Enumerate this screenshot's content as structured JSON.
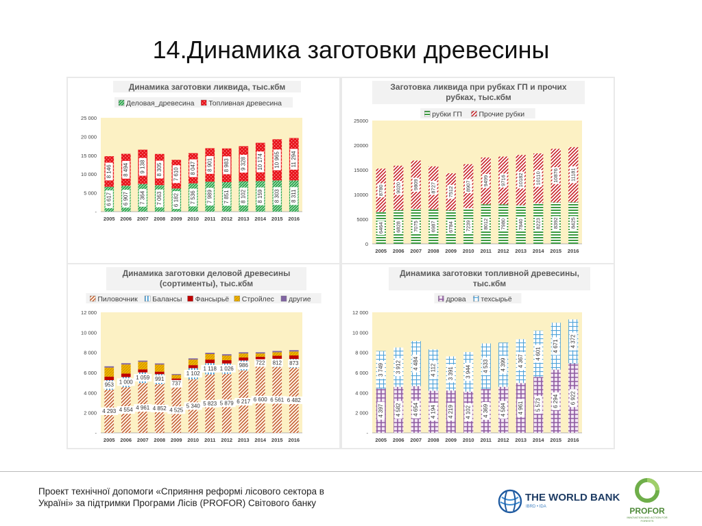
{
  "slide": {
    "title": "14.Динамика заготовки древесины",
    "footer": "Проект технічної допомоги «Сприяння реформі лісового сектора в Україні» за підтримки Програми Лісів (PROFOR) Світового банку",
    "logos": {
      "worldbank_name": "THE WORLD BANK",
      "worldbank_sub": "IBRD • IDA",
      "profor_name": "PROFOR",
      "profor_tagline": "INNOVATION AND ACTION FOR FORESTS"
    }
  },
  "chart_data": [
    {
      "type": "bar",
      "stacked": true,
      "title": "Динамика заготовки ликвида, тыс.кбм",
      "categories": [
        "2005",
        "2006",
        "2007",
        "2008",
        "2009",
        "2010",
        "2011",
        "2012",
        "2013",
        "2014",
        "2015",
        "2016"
      ],
      "series": [
        {
          "name": "Деловая_древесина",
          "values": [
            6617,
            6907,
            7364,
            7063,
            6182,
            7536,
            7989,
            7851,
            8102,
            8159,
            8303,
            8311
          ],
          "labels": [
            "6 617",
            "6 907",
            "7 364",
            "7 063",
            "6 182",
            "7 536",
            "7 989",
            "7 851",
            "8 102",
            "8 159",
            "8 303",
            "8 311"
          ],
          "color": "#2ea44f"
        },
        {
          "name": "Топливная древесина",
          "values": [
            8146,
            8494,
            9138,
            8305,
            7610,
            8047,
            8901,
            8983,
            9328,
            10174,
            10965,
            11294
          ],
          "labels": [
            "8 146",
            "8 494",
            "9 138",
            "8 305",
            "7 610",
            "8 047",
            "8 901",
            "8 983",
            "9 328",
            "10 174",
            "10 965",
            "11 294"
          ],
          "color": "#e8141b"
        }
      ],
      "ylim": [
        0,
        25000
      ],
      "yticks": [
        0,
        5000,
        10000,
        15000,
        20000,
        25000
      ],
      "ytick_labels": [
        "-",
        "5 000",
        "10 000",
        "15 000",
        "20 000",
        "25 000"
      ],
      "legend": "top",
      "grid": false,
      "plot_bg": "#fcf1c4"
    },
    {
      "type": "bar",
      "stacked": true,
      "title": "Заготовка ликвида при рубках ГП и прочих рубках, тыс.кбм",
      "categories": [
        "2005",
        "2006",
        "2007",
        "2008",
        "2009",
        "2010",
        "2011",
        "2012",
        "2013",
        "2014",
        "2015",
        "2016"
      ],
      "series": [
        {
          "name": "рубки ГП",
          "values": [
            6464,
            6828,
            7075,
            6987,
            6784,
            7239,
            8012,
            7980,
            7840,
            8223,
            8392,
            8425
          ],
          "labels": [
            "6464",
            "6828",
            "7075",
            "6987",
            "6784",
            "7239",
            "8012",
            "7980",
            "7840",
            "8223",
            "8392",
            "8425"
          ],
          "color": "#3a9a3e"
        },
        {
          "name": "Прочие рубки",
          "values": [
            8780,
            9020,
            9809,
            8727,
            7512,
            8907,
            9499,
            9716,
            10182,
            10110,
            10876,
            11181
          ],
          "labels": [
            "8780",
            "9020",
            "9809",
            "8727",
            "7512",
            "8907",
            "9499",
            "9716",
            "10182",
            "10110",
            "10876",
            "11181"
          ],
          "color": "#c72026"
        }
      ],
      "ylim": [
        0,
        25000
      ],
      "yticks": [
        0,
        5000,
        10000,
        15000,
        20000,
        25000
      ],
      "ytick_labels": [
        "0",
        "5000",
        "10000",
        "15000",
        "20000",
        "25000"
      ],
      "legend": "top",
      "grid": false,
      "plot_bg": "#fcf1c4"
    },
    {
      "type": "bar",
      "stacked": true,
      "title": "Динамика заготовки деловой древесины (сортименты), тыс.кбм",
      "categories": [
        "2005",
        "2006",
        "2007",
        "2008",
        "2009",
        "2010",
        "2011",
        "2012",
        "2013",
        "2014",
        "2015",
        "2016"
      ],
      "series": [
        {
          "name": "Пиловочник",
          "values": [
            4293,
            4554,
            4961,
            4852,
            4525,
            5340,
            5823,
            5879,
            6217,
            6600,
            6561,
            6482
          ],
          "labels": [
            "4 293",
            "4 554",
            "4 961",
            "4 852",
            "4 525",
            "5 340",
            "5 823",
            "5 879",
            "6 217",
            "6 600",
            "6 561",
            "6 482"
          ],
          "color": "#c0572a"
        },
        {
          "name": "Балансы",
          "values": [
            953,
            1000,
            1059,
            991,
            737,
            1102,
            1118,
            1026,
            986,
            722,
            812,
            873
          ],
          "labels": [
            "953",
            "1 000",
            "1 059",
            "991",
            "737",
            "1 102",
            "1 118",
            "1 026",
            "986",
            "722",
            "812",
            "873"
          ],
          "color": "#2f8fce"
        },
        {
          "name": "Фансырьё",
          "values": [
            350,
            350,
            300,
            250,
            150,
            300,
            350,
            330,
            300,
            250,
            300,
            350
          ],
          "labels": [],
          "color": "#c00000"
        },
        {
          "name": "Стройлес",
          "values": [
            900,
            900,
            750,
            700,
            350,
            550,
            550,
            460,
            400,
            330,
            350,
            390
          ],
          "labels": [],
          "color": "#f0b400"
        },
        {
          "name": "другие",
          "values": [
            130,
            130,
            120,
            120,
            90,
            120,
            130,
            130,
            120,
            120,
            130,
            140
          ],
          "labels": [],
          "color": "#8064a2"
        }
      ],
      "ylim": [
        0,
        12000
      ],
      "yticks": [
        0,
        2000,
        4000,
        6000,
        8000,
        10000,
        12000
      ],
      "ytick_labels": [
        "-",
        "2 000",
        "4 000",
        "6 000",
        "8 000",
        "10 000",
        "12 000"
      ],
      "legend": "top",
      "grid": false,
      "plot_bg": "#fcf1c4"
    },
    {
      "type": "bar",
      "stacked": true,
      "title": "Динамика заготовки топливной древесины, тыс.кбм",
      "categories": [
        "2005",
        "2006",
        "2007",
        "2008",
        "2009",
        "2010",
        "2011",
        "2012",
        "2013",
        "2014",
        "2015",
        "2016"
      ],
      "series": [
        {
          "name": "дрова",
          "values": [
            4397,
            4582,
            4654,
            4194,
            4219,
            4102,
            4369,
            4584,
            4961,
            5573,
            6294,
            6922
          ],
          "labels": [
            "4 397",
            "4 582",
            "4 654",
            "4 194",
            "4 219",
            "4 102",
            "4 369",
            "4 584",
            "4 961",
            "5 573",
            "6 294",
            "6 922"
          ],
          "color": "#8e5aa0"
        },
        {
          "name": "техсырьё",
          "values": [
            3749,
            3912,
            4484,
            4112,
            3391,
            3944,
            4533,
            4399,
            4367,
            4601,
            4671,
            4372
          ],
          "labels": [
            "3 749",
            "3 912",
            "4 484",
            "4 112",
            "3 391",
            "3 944",
            "4 533",
            "4 399",
            "4 367",
            "4 601",
            "4 671",
            "4 372"
          ],
          "color": "#4fa3d9"
        }
      ],
      "ylim": [
        0,
        12000
      ],
      "yticks": [
        0,
        2000,
        4000,
        6000,
        8000,
        10000,
        12000
      ],
      "ytick_labels": [
        "-",
        "2 000",
        "4 000",
        "6 000",
        "8 000",
        "10 000",
        "12 000"
      ],
      "legend": "top",
      "grid": false,
      "plot_bg": "#fcf1c4"
    }
  ]
}
